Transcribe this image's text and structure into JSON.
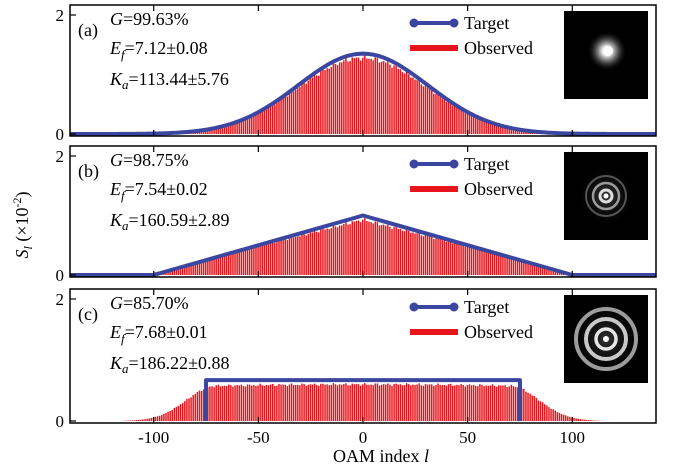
{
  "figure": {
    "xlabel_prefix": "OAM index ",
    "xlabel_var": "l",
    "ylabel_var": "S",
    "ylabel_sub": "l",
    "ylabel_unit_open": " (×10",
    "ylabel_unit_exp": "-2",
    "ylabel_unit_close": ")"
  },
  "panels": [
    {
      "label": "(a)",
      "G": "=99.63%",
      "Ef": "=7.12±0.08",
      "Ka": "=113.44±5.76",
      "legend": {
        "target": "Target",
        "observed": "Observed"
      },
      "beam": {
        "type": "donut-blob",
        "icon_name": "beam-spot-icon"
      }
    },
    {
      "label": "(b)",
      "G": "=98.75%",
      "Ef": "=7.54±0.02",
      "Ka": "=160.59±2.89",
      "legend": {
        "target": "Target",
        "observed": "Observed"
      },
      "beam": {
        "type": "small-rings",
        "icon_name": "beam-rings-icon"
      }
    },
    {
      "label": "(c)",
      "G": "=85.70%",
      "Ef": "=7.68±0.01",
      "Ka": "=186.22±0.88",
      "legend": {
        "target": "Target",
        "observed": "Observed"
      },
      "beam": {
        "type": "large-rings",
        "icon_name": "beam-rings-icon"
      }
    }
  ],
  "chart_data": [
    {
      "type": "bar",
      "panel": "(a)",
      "xlim": [
        -140,
        140
      ],
      "ylim": [
        0,
        2
      ],
      "yticks": [
        0,
        2
      ],
      "xticks": [
        -100,
        -50,
        0,
        50,
        100
      ],
      "xtick_labels": [
        "-100",
        "-50",
        "0",
        "50",
        "100"
      ],
      "series": [
        {
          "name": "Target",
          "kind": "line",
          "shape": "gaussian",
          "peak": 1.35,
          "center": 0,
          "sigma": 31
        },
        {
          "name": "Observed",
          "kind": "bar",
          "shape": "gaussian",
          "peak": 1.28,
          "center": 0,
          "sigma": 31,
          "x_range": [
            -140,
            140
          ]
        }
      ],
      "colors": {
        "target": "#3b46a0",
        "observed": "#e8141b"
      }
    },
    {
      "type": "bar",
      "panel": "(b)",
      "xlim": [
        -140,
        140
      ],
      "ylim": [
        0,
        2
      ],
      "yticks": [
        0,
        2
      ],
      "xticks": [
        -100,
        -50,
        0,
        50,
        100
      ],
      "xtick_labels": [
        "-100",
        "-50",
        "0",
        "50",
        "100"
      ],
      "series": [
        {
          "name": "Target",
          "kind": "line",
          "shape": "triangle",
          "peak": 1.0,
          "center": 0,
          "half_width": 100
        },
        {
          "name": "Observed",
          "kind": "bar",
          "shape": "triangle",
          "peak": 0.93,
          "center": 0,
          "half_width": 104,
          "x_range": [
            -140,
            140
          ]
        }
      ],
      "colors": {
        "target": "#3b46a0",
        "observed": "#e8141b"
      }
    },
    {
      "type": "bar",
      "panel": "(c)",
      "xlim": [
        -140,
        140
      ],
      "ylim": [
        0,
        2
      ],
      "yticks": [
        0,
        2
      ],
      "xticks": [
        -100,
        -50,
        0,
        50,
        100
      ],
      "xtick_labels": [
        "-100",
        "-50",
        "0",
        "50",
        "100"
      ],
      "series": [
        {
          "name": "Target",
          "kind": "line",
          "shape": "rect",
          "level": 0.67,
          "x_range": [
            -75,
            75
          ]
        },
        {
          "name": "Observed",
          "kind": "bar",
          "shape": "plateau",
          "level": 0.6,
          "flat_range": [
            -70,
            70
          ],
          "x_range": [
            -140,
            140
          ]
        }
      ],
      "colors": {
        "target": "#3b46a0",
        "observed": "#e8141b"
      }
    }
  ]
}
